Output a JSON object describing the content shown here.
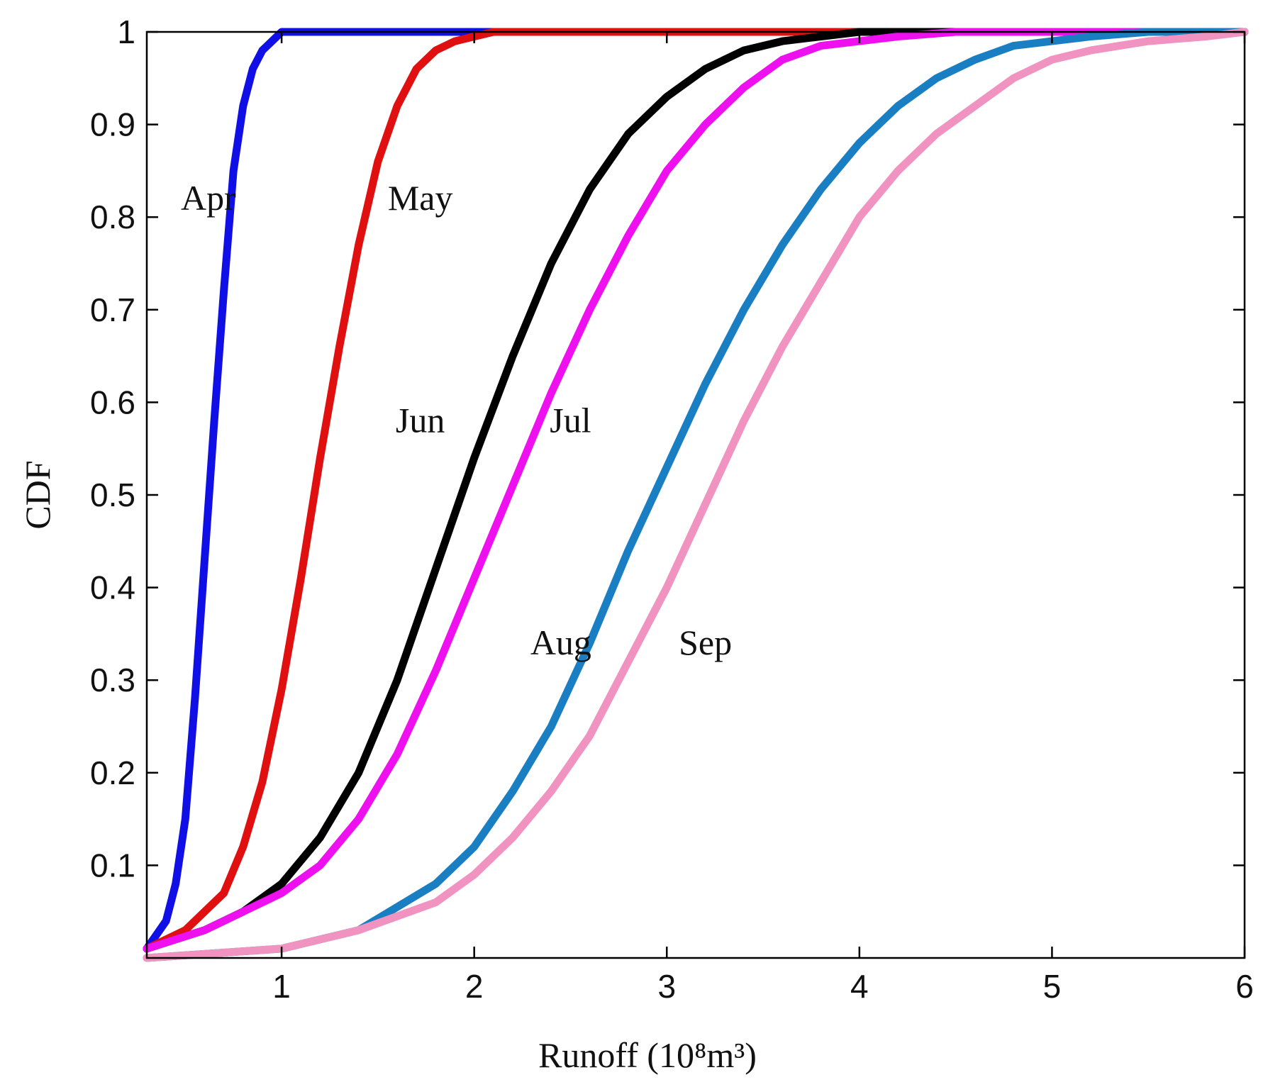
{
  "chart_data": {
    "type": "line",
    "title": "",
    "xlabel": "Runoff (10⁸m³)",
    "ylabel": "CDF",
    "xlim": [
      0.3,
      6
    ],
    "ylim": [
      0,
      1
    ],
    "x_ticks": [
      1,
      2,
      3,
      4,
      5,
      6
    ],
    "y_ticks": [
      0.1,
      0.2,
      0.3,
      0.4,
      0.5,
      0.6,
      0.7,
      0.8,
      0.9,
      1
    ],
    "x_tick_labels": [
      "1",
      "2",
      "3",
      "4",
      "5",
      "6"
    ],
    "y_tick_labels": [
      "0.1",
      "0.2",
      "0.3",
      "0.4",
      "0.5",
      "0.6",
      "0.7",
      "0.8",
      "0.9",
      "1"
    ],
    "grid": false,
    "legend": "none",
    "series": [
      {
        "name": "Apr",
        "color": "#1010e6",
        "x": [
          0.3,
          0.4,
          0.45,
          0.5,
          0.55,
          0.6,
          0.65,
          0.7,
          0.75,
          0.8,
          0.85,
          0.9,
          0.95,
          1.0,
          1.1,
          1.3,
          2.0,
          6.0
        ],
        "y": [
          0.01,
          0.04,
          0.08,
          0.15,
          0.28,
          0.43,
          0.58,
          0.72,
          0.85,
          0.92,
          0.96,
          0.98,
          0.99,
          1.0,
          1.0,
          1.0,
          1.0,
          1.0
        ]
      },
      {
        "name": "May",
        "color": "#e01010",
        "x": [
          0.3,
          0.5,
          0.7,
          0.8,
          0.9,
          1.0,
          1.1,
          1.2,
          1.3,
          1.4,
          1.5,
          1.6,
          1.7,
          1.8,
          1.9,
          2.0,
          2.1,
          2.3,
          3.0,
          6.0
        ],
        "y": [
          0.01,
          0.03,
          0.07,
          0.12,
          0.19,
          0.29,
          0.41,
          0.54,
          0.66,
          0.77,
          0.86,
          0.92,
          0.96,
          0.98,
          0.99,
          0.995,
          1.0,
          1.0,
          1.0,
          1.0
        ]
      },
      {
        "name": "Jun",
        "color": "#000000",
        "x": [
          0.3,
          0.6,
          0.8,
          1.0,
          1.2,
          1.4,
          1.6,
          1.8,
          2.0,
          2.2,
          2.4,
          2.6,
          2.8,
          3.0,
          3.2,
          3.4,
          3.6,
          3.8,
          4.0,
          4.2,
          6.0
        ],
        "y": [
          0.01,
          0.03,
          0.05,
          0.08,
          0.13,
          0.2,
          0.3,
          0.42,
          0.54,
          0.65,
          0.75,
          0.83,
          0.89,
          0.93,
          0.96,
          0.98,
          0.99,
          0.995,
          1.0,
          1.0,
          1.0
        ]
      },
      {
        "name": "Jul",
        "color": "#ee10ee",
        "x": [
          0.3,
          0.6,
          1.0,
          1.2,
          1.4,
          1.6,
          1.8,
          2.0,
          2.2,
          2.4,
          2.6,
          2.8,
          3.0,
          3.2,
          3.4,
          3.6,
          3.8,
          4.0,
          4.2,
          4.5,
          5.0,
          6.0
        ],
        "y": [
          0.01,
          0.03,
          0.07,
          0.1,
          0.15,
          0.22,
          0.31,
          0.41,
          0.51,
          0.61,
          0.7,
          0.78,
          0.85,
          0.9,
          0.94,
          0.97,
          0.985,
          0.99,
          0.995,
          1.0,
          1.0,
          1.0
        ]
      },
      {
        "name": "Aug",
        "color": "#1a7fc2",
        "x": [
          0.3,
          1.0,
          1.4,
          1.8,
          2.0,
          2.2,
          2.4,
          2.6,
          2.8,
          3.0,
          3.2,
          3.4,
          3.6,
          3.8,
          4.0,
          4.2,
          4.4,
          4.6,
          4.8,
          5.0,
          5.2,
          5.5,
          6.0
        ],
        "y": [
          0.0,
          0.01,
          0.03,
          0.08,
          0.12,
          0.18,
          0.25,
          0.34,
          0.44,
          0.53,
          0.62,
          0.7,
          0.77,
          0.83,
          0.88,
          0.92,
          0.95,
          0.97,
          0.985,
          0.99,
          0.995,
          1.0,
          1.0
        ]
      },
      {
        "name": "Sep",
        "color": "#f093c0",
        "x": [
          0.3,
          1.0,
          1.4,
          1.8,
          2.0,
          2.2,
          2.4,
          2.6,
          2.8,
          3.0,
          3.2,
          3.4,
          3.6,
          3.8,
          4.0,
          4.2,
          4.4,
          4.6,
          4.8,
          5.0,
          5.2,
          5.5,
          5.8,
          6.0
        ],
        "y": [
          0.0,
          0.01,
          0.03,
          0.06,
          0.09,
          0.13,
          0.18,
          0.24,
          0.32,
          0.4,
          0.49,
          0.58,
          0.66,
          0.73,
          0.8,
          0.85,
          0.89,
          0.92,
          0.95,
          0.97,
          0.98,
          0.99,
          0.995,
          1.0
        ]
      }
    ],
    "annotations": [
      {
        "text": "Apr",
        "x": 0.62,
        "y": 0.82
      },
      {
        "text": "May",
        "x": 1.72,
        "y": 0.82
      },
      {
        "text": "Jun",
        "x": 1.72,
        "y": 0.58
      },
      {
        "text": "Jul",
        "x": 2.5,
        "y": 0.58
      },
      {
        "text": "Aug",
        "x": 2.45,
        "y": 0.34
      },
      {
        "text": "Sep",
        "x": 3.2,
        "y": 0.34
      }
    ]
  }
}
